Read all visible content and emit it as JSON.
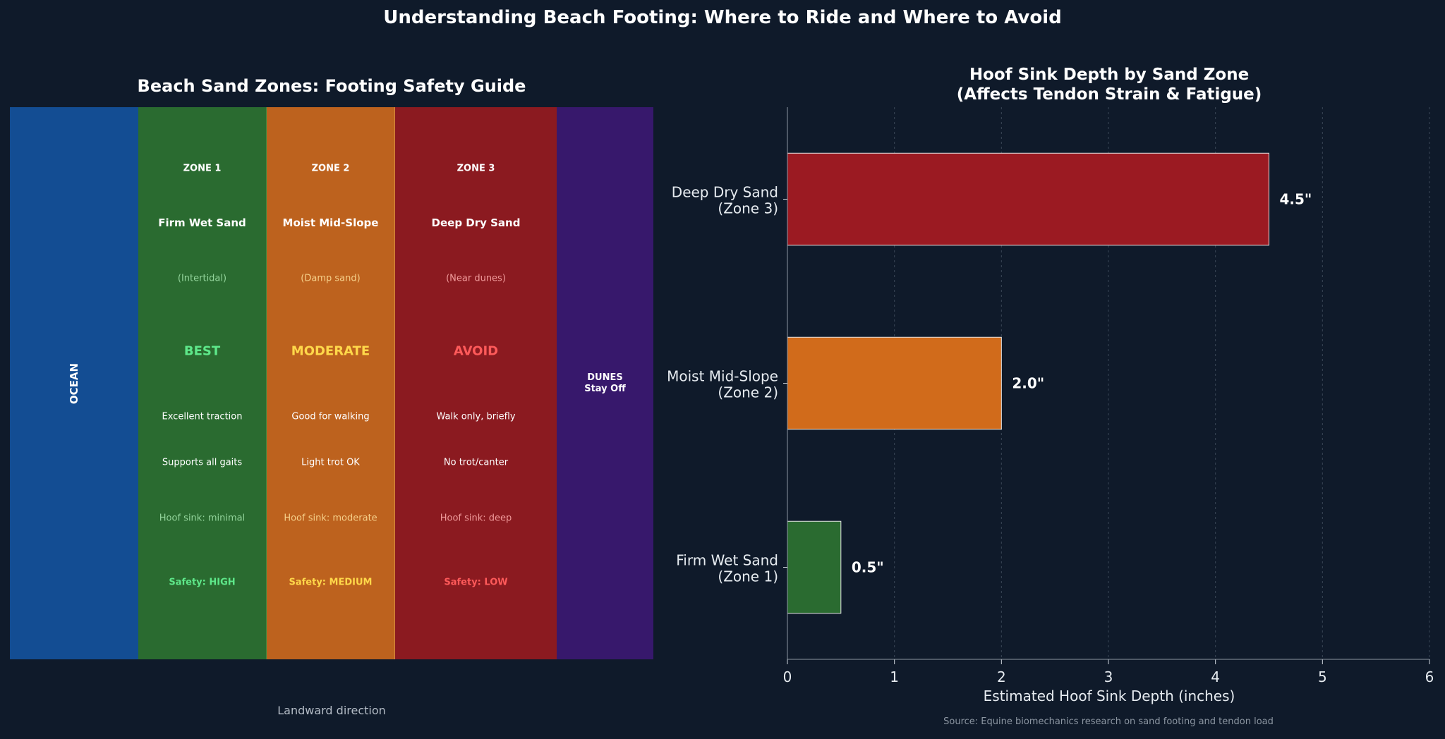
{
  "main_title": "Understanding Beach Footing: Where to Ride and Where to Avoid",
  "zone_panel": {
    "title": "Beach Sand Zones: Footing Safety Guide",
    "ocean_label": "OCEAN",
    "dunes_line1": "DUNES",
    "dunes_line2": "Stay Off",
    "xlabel": "Landward direction",
    "zones": [
      {
        "zone_label": "ZONE 1",
        "name": "Firm Wet Sand",
        "sub": "(Intertidal)",
        "rating": "BEST",
        "desc1": "Excellent traction",
        "desc2": "Supports all gaits",
        "sink": "Hoof sink: minimal",
        "safety": "Safety: HIGH",
        "fill": "#2a6b30",
        "accent": "#5ee88a",
        "sub_color": "#93d49b"
      },
      {
        "zone_label": "ZONE 2",
        "name": "Moist Mid-Slope",
        "sub": "(Damp sand)",
        "rating": "MODERATE",
        "desc1": "Good for walking",
        "desc2": "Light trot OK",
        "sink": "Hoof sink: moderate",
        "safety": "Safety: MEDIUM",
        "fill": "#bd621e",
        "accent": "#ffd84a",
        "sub_color": "#f6d08a"
      },
      {
        "zone_label": "ZONE 3",
        "name": "Deep Dry Sand",
        "sub": "(Near dunes)",
        "rating": "AVOID",
        "desc1": "Walk only, briefly",
        "desc2": "No trot/canter",
        "sink": "Hoof sink: deep",
        "safety": "Safety: LOW",
        "fill": "#8b1a20",
        "accent": "#ff5a5a",
        "sub_color": "#f09a9a"
      }
    ],
    "ocean_color": "#134d93",
    "dunes_color": "#37186c"
  },
  "chart_data": {
    "type": "bar",
    "orientation": "horizontal",
    "title": "Hoof Sink Depth by Sand Zone\n(Affects Tendon Strain & Fatigue)",
    "title_line1": "Hoof Sink Depth by Sand Zone",
    "title_line2": "(Affects Tendon Strain & Fatigue)",
    "categories": [
      "Firm Wet Sand\n(Zone 1)",
      "Moist Mid-Slope\n(Zone 2)",
      "Deep Dry Sand\n(Zone 3)"
    ],
    "values": [
      0.5,
      2.0,
      4.5
    ],
    "value_labels": [
      "0.5\"",
      "2.0\"",
      "4.5\""
    ],
    "colors": [
      "#2a6b30",
      "#d16b1b",
      "#9b1a22"
    ],
    "xlabel": "Estimated Hoof Sink Depth (inches)",
    "ylabel": "",
    "xlim": [
      0,
      6
    ],
    "xticks": [
      "0",
      "1",
      "2",
      "3",
      "4",
      "5",
      "6"
    ],
    "grid": "vertical dashed"
  },
  "source_note": "Source: Equine biomechanics research on sand footing and tendon load"
}
